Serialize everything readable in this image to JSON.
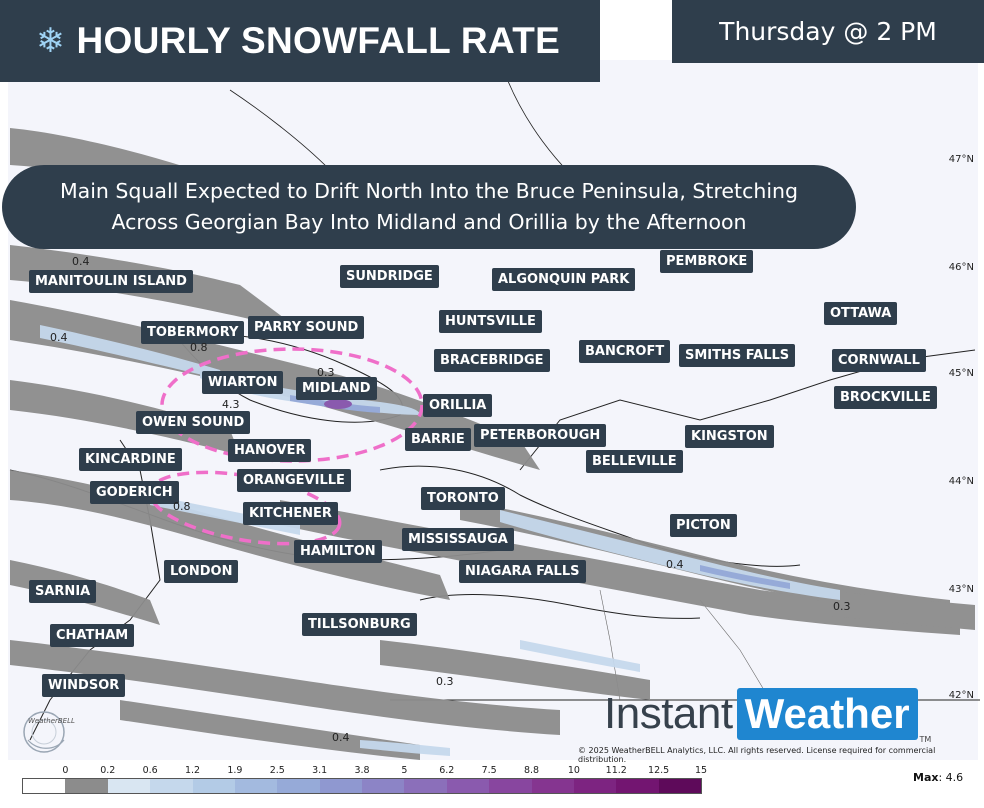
{
  "header": {
    "snow_icon": "snowflake-icon",
    "title": "HOURLY SNOWFALL RATE",
    "time": "Thursday @ 2 PM"
  },
  "headline": {
    "line1": "Main Squall Expected to Drift North Into the Bruce Peninsula, Stretching",
    "line2": "Across Georgian Bay Into Midland and Orillia by the Afternoon"
  },
  "cities": [
    {
      "label": "MANITOULIN ISLAND"
    },
    {
      "label": "SUNDRIDGE"
    },
    {
      "label": "ALGONQUIN PARK"
    },
    {
      "label": "PEMBROKE"
    },
    {
      "label": "TOBERMORY"
    },
    {
      "label": "PARRY SOUND"
    },
    {
      "label": "HUNTSVILLE"
    },
    {
      "label": "OTTAWA"
    },
    {
      "label": "BRACEBRIDGE"
    },
    {
      "label": "BANCROFT"
    },
    {
      "label": "SMITHS FALLS"
    },
    {
      "label": "CORNWALL"
    },
    {
      "label": "WIARTON"
    },
    {
      "label": "MIDLAND"
    },
    {
      "label": "BROCKVILLE"
    },
    {
      "label": "ORILLIA"
    },
    {
      "label": "OWEN SOUND"
    },
    {
      "label": "BARRIE"
    },
    {
      "label": "PETERBOROUGH"
    },
    {
      "label": "KINGSTON"
    },
    {
      "label": "HANOVER"
    },
    {
      "label": "KINCARDINE"
    },
    {
      "label": "BELLEVILLE"
    },
    {
      "label": "ORANGEVILLE"
    },
    {
      "label": "GODERICH"
    },
    {
      "label": "TORONTO"
    },
    {
      "label": "KITCHENER"
    },
    {
      "label": "PICTON"
    },
    {
      "label": "MISSISSAUGA"
    },
    {
      "label": "HAMILTON"
    },
    {
      "label": "LONDON"
    },
    {
      "label": "NIAGARA FALLS"
    },
    {
      "label": "SARNIA"
    },
    {
      "label": "TILLSONBURG"
    },
    {
      "label": "CHATHAM"
    },
    {
      "label": "WINDSOR"
    }
  ],
  "latitudes": [
    "47°N",
    "46°N",
    "45°N",
    "44°N",
    "43°N",
    "42°N"
  ],
  "map_values": [
    "0.4",
    "0.4",
    "0.8",
    "0.3",
    "4.3",
    "0.8",
    "0.4",
    "0.3",
    "0.3",
    "0.4"
  ],
  "legend": {
    "ticks": [
      "0",
      "0.2",
      "0.6",
      "1.2",
      "1.9",
      "2.5",
      "3.1",
      "3.8",
      "5",
      "6.2",
      "7.5",
      "8.8",
      "10",
      "11.2",
      "12.5",
      "15"
    ],
    "colors": [
      "#ffffff",
      "#8c8c8c",
      "#d9e6f2",
      "#c5d8ec",
      "#b3cbe6",
      "#a3badf",
      "#96aad8",
      "#8f98d0",
      "#8c84c6",
      "#8b6fba",
      "#8a5aae",
      "#88469f",
      "#853590",
      "#7d2481",
      "#731571",
      "#5e0a5a"
    ],
    "max_label": "Max",
    "max_value": ": 4.6"
  },
  "branding": {
    "instant": "Instant",
    "weather": "Weather",
    "tm": "TM",
    "copyright": "© 2025 WeatherBELL Analytics, LLC. All rights reserved. License required for commercial distribution.",
    "weatherbell": "WeatherBELL"
  }
}
